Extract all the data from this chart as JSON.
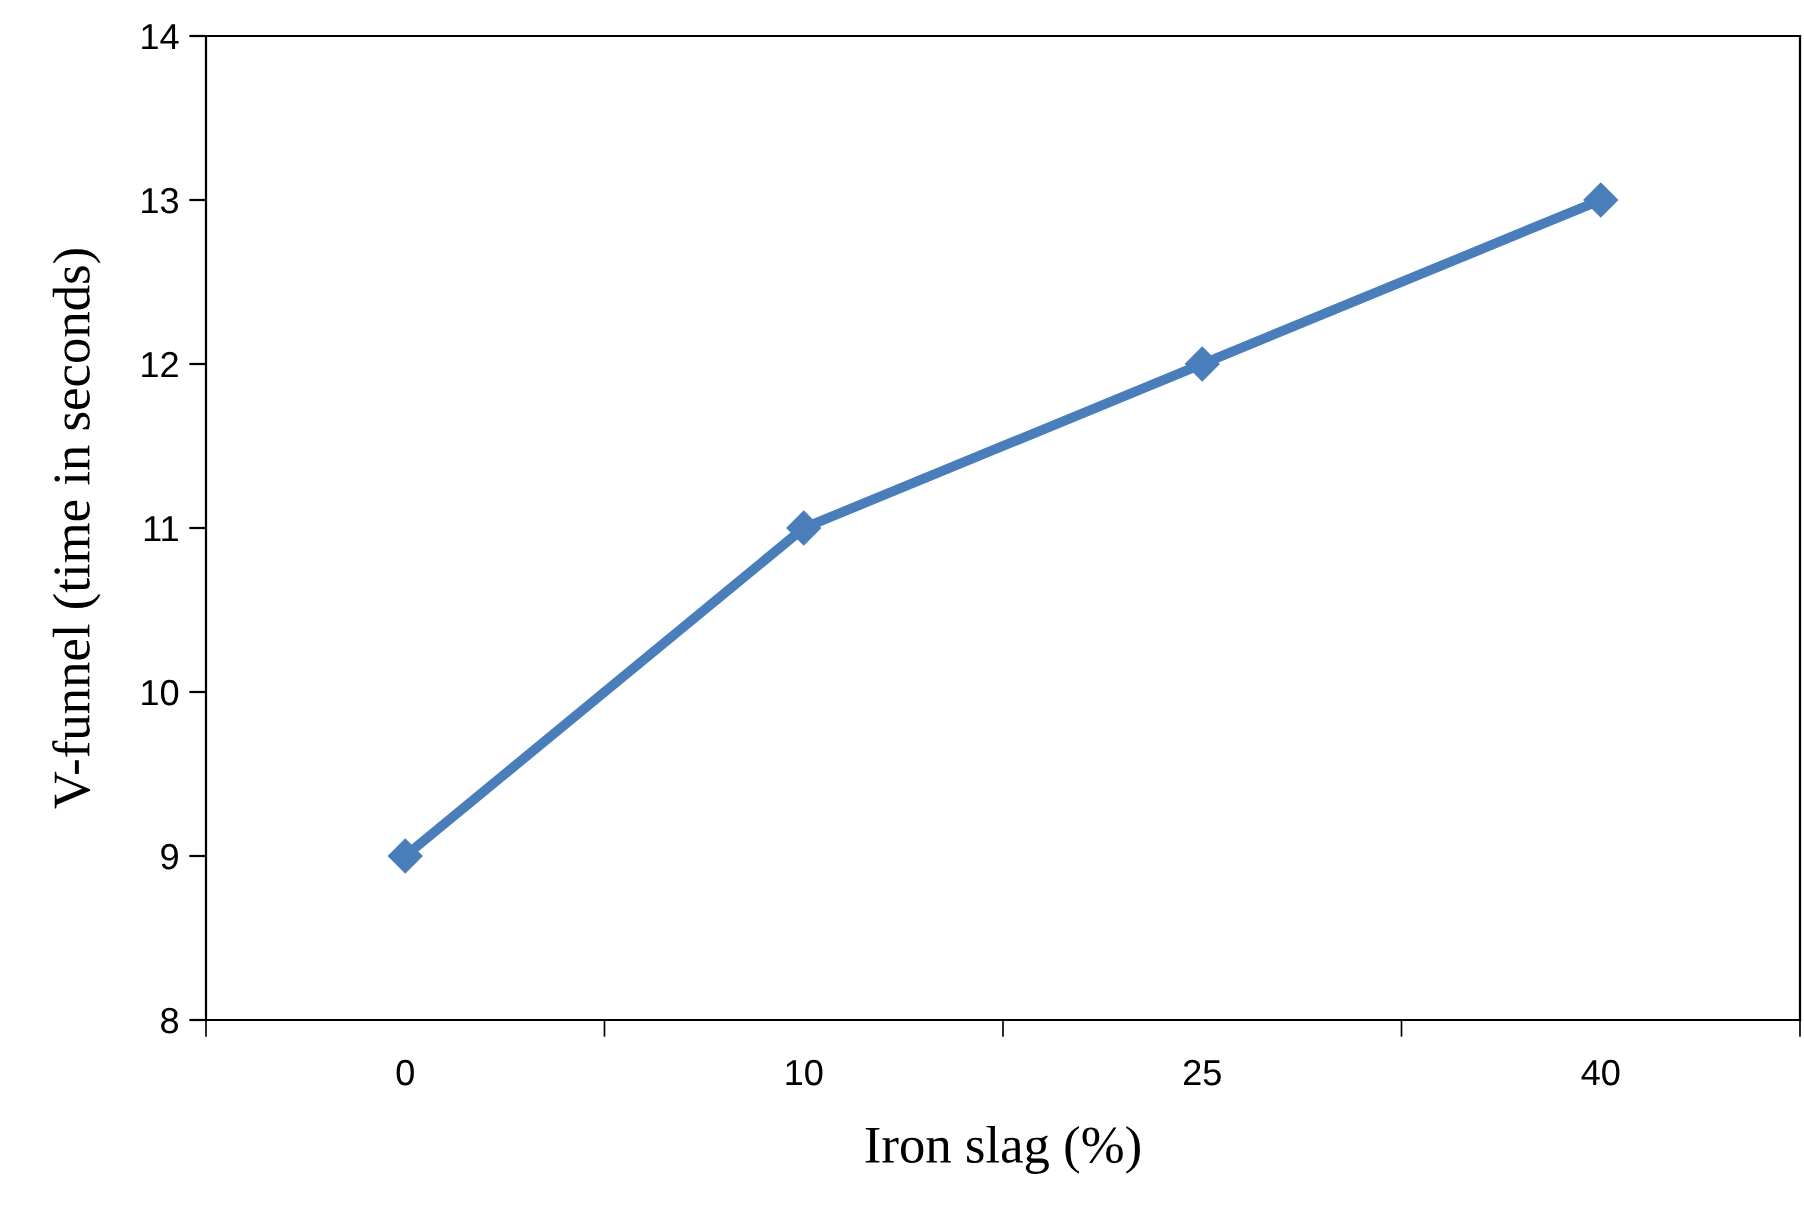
{
  "chart_data": {
    "type": "line",
    "xlabel": "Iron slag (%)",
    "ylabel": "V-funnel (time in seconds)",
    "categories": [
      "0",
      "10",
      "25",
      "40"
    ],
    "series": [
      {
        "color": "#4a7ebb",
        "values": [
          9,
          11,
          12,
          13
        ]
      }
    ],
    "ylim": [
      8,
      14
    ],
    "yticks": [
      8,
      9,
      10,
      11,
      12,
      13,
      14
    ],
    "grid": false,
    "legend": false,
    "marker": "diamond",
    "line_style": "solid"
  }
}
